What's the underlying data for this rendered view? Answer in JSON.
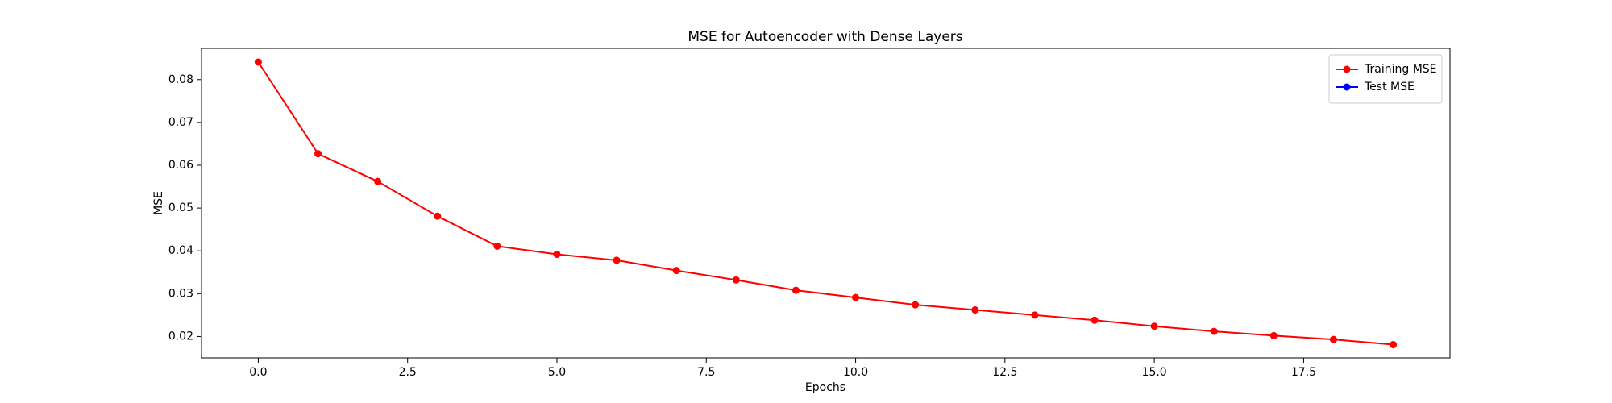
{
  "chart_data": {
    "type": "line",
    "title": "MSE for Autoencoder with Dense Layers",
    "xlabel": "Epochs",
    "ylabel": "MSE",
    "x": [
      0,
      1,
      2,
      3,
      4,
      5,
      6,
      7,
      8,
      9,
      10,
      11,
      12,
      13,
      14,
      15,
      16,
      17,
      18,
      19
    ],
    "series": [
      {
        "name": "Training MSE",
        "color": "#ff0000",
        "values": [
          0.0841,
          0.0627,
          0.0562,
          0.0481,
          0.0411,
          0.0392,
          0.0378,
          0.0354,
          0.0332,
          0.0308,
          0.0291,
          0.0274,
          0.0262,
          0.025,
          0.0238,
          0.0224,
          0.0212,
          0.0202,
          0.0193,
          0.0181
        ]
      },
      {
        "name": "Test MSE",
        "color": "#0000ff",
        "values": [
          null,
          null,
          null,
          null,
          null,
          null,
          null,
          null,
          null,
          null,
          null,
          null,
          null,
          null,
          null,
          null,
          null,
          null,
          null,
          null
        ]
      }
    ],
    "xlim": [
      -0.95,
      19.95
    ],
    "xticks": [
      {
        "value": 0,
        "label": "0.0"
      },
      {
        "value": 2.5,
        "label": "2.5"
      },
      {
        "value": 5,
        "label": "5.0"
      },
      {
        "value": 7.5,
        "label": "7.5"
      },
      {
        "value": 10,
        "label": "10.0"
      },
      {
        "value": 12.5,
        "label": "12.5"
      },
      {
        "value": 15,
        "label": "15.0"
      },
      {
        "value": 17.5,
        "label": "17.5"
      }
    ],
    "ylim": [
      0.015,
      0.0873
    ],
    "yticks": [
      0.02,
      0.03,
      0.04,
      0.05,
      0.06,
      0.07,
      0.08
    ],
    "legend": "upper right"
  }
}
